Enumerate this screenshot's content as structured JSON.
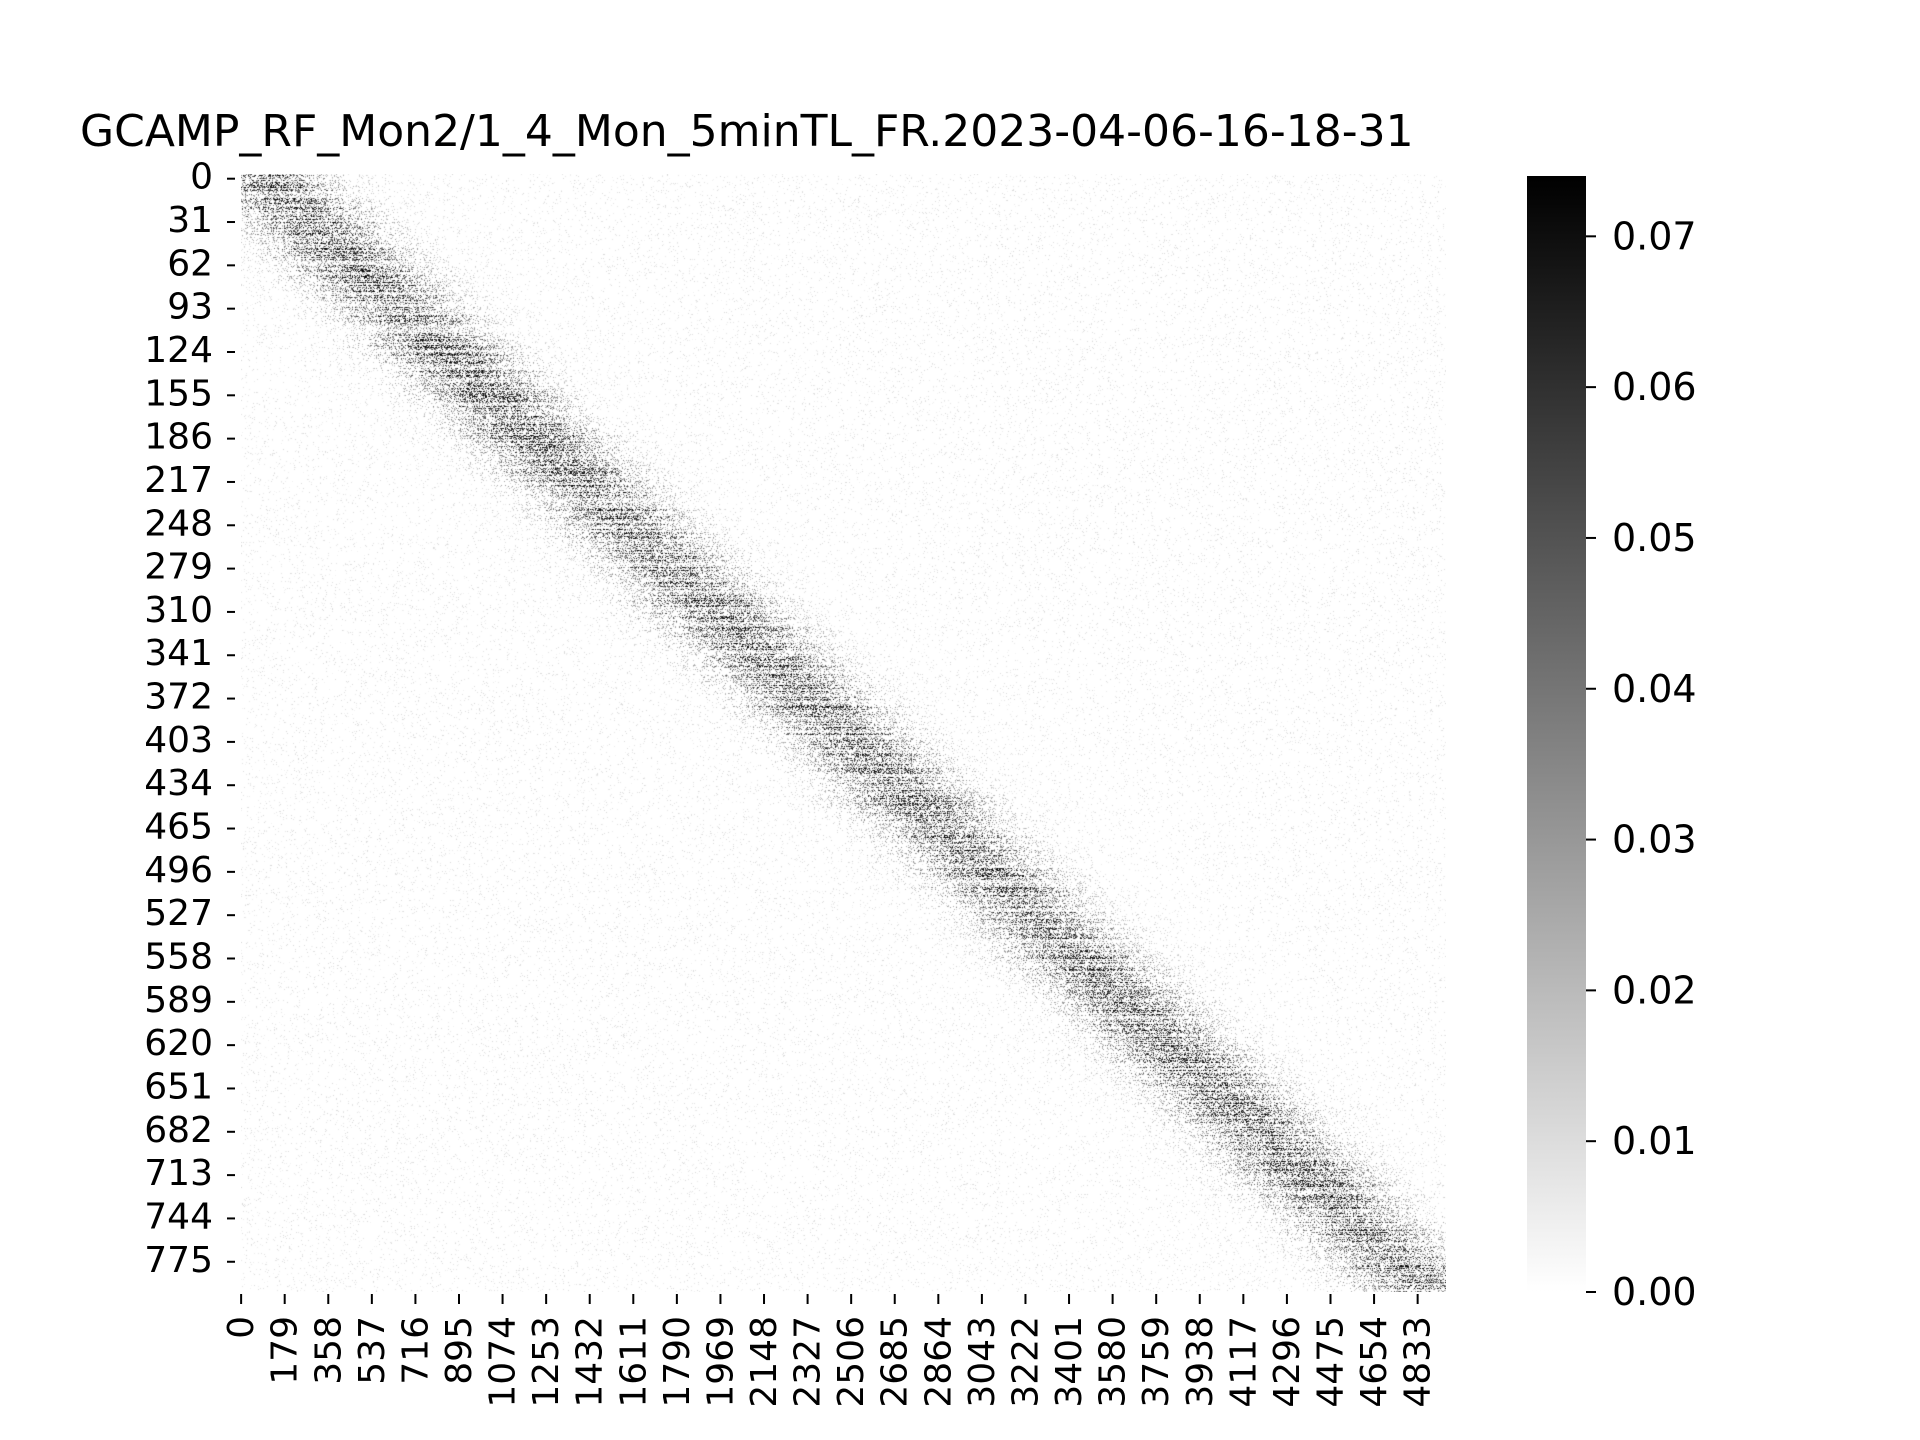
{
  "chart_data": {
    "type": "heatmap",
    "title": "GCAMP_RF_Mon2/1_4_Mon_5minTL_FR.2023-04-06-16-18-31",
    "xlabel": "",
    "ylabel": "",
    "n_rows": 800,
    "n_cols": 4950,
    "y_tick_labels": [
      "0",
      "31",
      "62",
      "93",
      "124",
      "155",
      "186",
      "217",
      "248",
      "279",
      "310",
      "341",
      "372",
      "403",
      "434",
      "465",
      "496",
      "527",
      "558",
      "589",
      "620",
      "651",
      "682",
      "713",
      "744",
      "775"
    ],
    "x_tick_labels": [
      "0",
      "179",
      "358",
      "537",
      "716",
      "895",
      "1074",
      "1253",
      "1432",
      "1611",
      "1790",
      "1969",
      "2148",
      "2327",
      "2506",
      "2685",
      "2864",
      "3043",
      "3222",
      "3401",
      "3580",
      "3759",
      "3938",
      "4117",
      "4296",
      "4475",
      "4654",
      "4833"
    ],
    "colorbar": {
      "vmin": 0.0,
      "vmax": 0.074,
      "ticks": [
        0.0,
        0.01,
        0.02,
        0.03,
        0.04,
        0.05,
        0.06,
        0.07
      ],
      "tick_labels": [
        "0.00",
        "0.01",
        "0.02",
        "0.03",
        "0.04",
        "0.05",
        "0.06",
        "0.07"
      ],
      "colormap": "white-to-black",
      "low_color": "#ffffff",
      "high_color": "#000000"
    },
    "pattern": "sparse activity; cells sorted by peak time so the dense band runs diagonally from row 0 near column 0 to row 799 near column 4950",
    "grid": false
  }
}
